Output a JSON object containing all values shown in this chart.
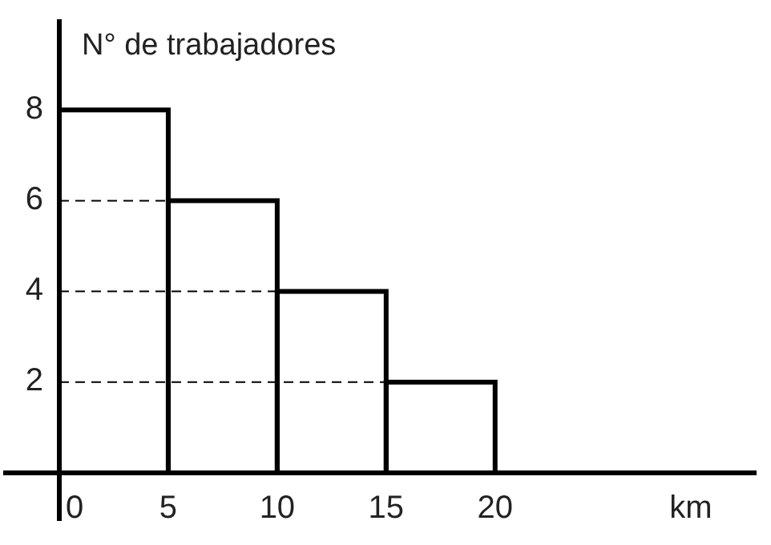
{
  "chart_data": {
    "type": "histogram",
    "xlabel": "km",
    "ylabel": "N° de trabajadores",
    "bins": [
      0,
      5,
      10,
      15,
      20
    ],
    "values": [
      8,
      6,
      4,
      2
    ],
    "color": "#000000",
    "xlim": [
      0,
      32
    ],
    "xticks": [
      0,
      5,
      10,
      15,
      20
    ],
    "ylim": [
      0,
      10
    ],
    "yticks": [
      2,
      4,
      6,
      8
    ],
    "grid": false,
    "ref_lines": [
      {
        "axis": "y",
        "value": 6,
        "line_style": "dashed"
      },
      {
        "axis": "y",
        "value": 4,
        "line_style": "dashed"
      },
      {
        "axis": "y",
        "value": 2,
        "line_style": "dashed"
      }
    ]
  }
}
